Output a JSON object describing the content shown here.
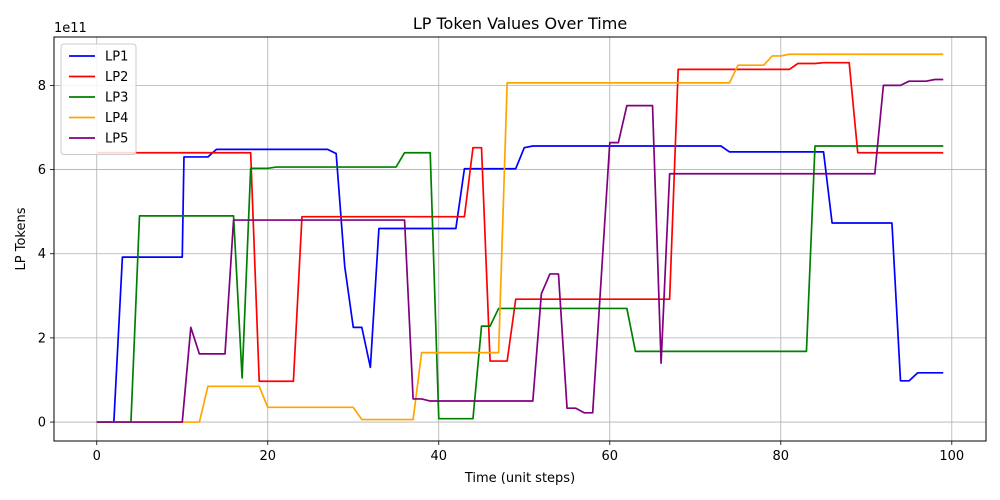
{
  "chart_data": {
    "type": "line",
    "title": "LP Token Values Over Time",
    "xlabel": "Time (unit steps)",
    "ylabel": "LP Tokens",
    "y_offset_label": "1e11",
    "xlim": [
      -5,
      104
    ],
    "ylim": [
      -0.45,
      9.15
    ],
    "y_unit": "1e11",
    "x_ticks": [
      0,
      20,
      40,
      60,
      80,
      100
    ],
    "y_ticks": [
      0,
      2,
      4,
      6,
      8
    ],
    "grid": true,
    "legend_position": "top-left",
    "series": [
      {
        "name": "LP1",
        "color": "#0000ff",
        "points": [
          [
            0,
            0
          ],
          [
            2,
            0
          ],
          [
            3,
            3.92
          ],
          [
            10,
            3.92
          ],
          [
            10.2,
            6.3
          ],
          [
            13,
            6.3
          ],
          [
            14,
            6.48
          ],
          [
            27,
            6.48
          ],
          [
            28,
            6.38
          ],
          [
            29,
            3.7
          ],
          [
            30,
            2.25
          ],
          [
            31,
            2.25
          ],
          [
            32,
            1.3
          ],
          [
            33,
            4.6
          ],
          [
            41,
            4.6
          ],
          [
            42,
            4.6
          ],
          [
            43,
            6.02
          ],
          [
            49,
            6.02
          ],
          [
            50,
            6.52
          ],
          [
            51,
            6.56
          ],
          [
            73,
            6.56
          ],
          [
            74,
            6.42
          ],
          [
            85,
            6.42
          ],
          [
            86,
            4.73
          ],
          [
            93,
            4.73
          ],
          [
            94,
            0.98
          ],
          [
            95,
            0.98
          ],
          [
            96,
            1.17
          ],
          [
            99,
            1.17
          ]
        ]
      },
      {
        "name": "LP2",
        "color": "#ff0000",
        "points": [
          [
            0,
            6.4
          ],
          [
            18,
            6.4
          ],
          [
            19,
            0.97
          ],
          [
            23,
            0.97
          ],
          [
            24,
            4.88
          ],
          [
            43,
            4.88
          ],
          [
            44,
            6.52
          ],
          [
            45,
            6.52
          ],
          [
            46,
            1.45
          ],
          [
            48,
            1.45
          ],
          [
            49,
            2.92
          ],
          [
            67,
            2.92
          ],
          [
            68,
            8.38
          ],
          [
            80,
            8.38
          ],
          [
            81,
            8.38
          ],
          [
            82,
            8.52
          ],
          [
            84,
            8.52
          ],
          [
            85,
            8.54
          ],
          [
            88,
            8.54
          ],
          [
            89,
            6.4
          ],
          [
            99,
            6.4
          ]
        ]
      },
      {
        "name": "LP3",
        "color": "#008000",
        "points": [
          [
            0,
            0
          ],
          [
            4,
            0
          ],
          [
            5,
            4.9
          ],
          [
            16,
            4.9
          ],
          [
            17,
            1.05
          ],
          [
            18,
            6.03
          ],
          [
            20,
            6.03
          ],
          [
            21,
            6.06
          ],
          [
            35,
            6.06
          ],
          [
            36,
            6.4
          ],
          [
            39,
            6.4
          ],
          [
            40,
            0.08
          ],
          [
            44,
            0.08
          ],
          [
            45,
            2.28
          ],
          [
            46,
            2.28
          ],
          [
            47,
            2.7
          ],
          [
            62,
            2.7
          ],
          [
            63,
            1.68
          ],
          [
            83,
            1.68
          ],
          [
            84,
            6.56
          ],
          [
            99,
            6.56
          ]
        ]
      },
      {
        "name": "LP4",
        "color": "#ffa500",
        "points": [
          [
            0,
            0
          ],
          [
            12,
            0
          ],
          [
            13,
            0.85
          ],
          [
            19,
            0.85
          ],
          [
            20,
            0.35
          ],
          [
            30,
            0.35
          ],
          [
            31,
            0.06
          ],
          [
            37,
            0.06
          ],
          [
            38,
            1.65
          ],
          [
            47,
            1.65
          ],
          [
            48,
            8.06
          ],
          [
            74,
            8.06
          ],
          [
            75,
            8.48
          ],
          [
            78,
            8.48
          ],
          [
            79,
            8.7
          ],
          [
            80,
            8.7
          ],
          [
            81,
            8.74
          ],
          [
            99,
            8.74
          ]
        ]
      },
      {
        "name": "LP5",
        "color": "#800080",
        "points": [
          [
            0,
            0
          ],
          [
            10,
            0
          ],
          [
            11,
            2.25
          ],
          [
            12,
            1.62
          ],
          [
            15,
            1.62
          ],
          [
            16,
            4.8
          ],
          [
            36,
            4.8
          ],
          [
            37,
            0.55
          ],
          [
            38,
            0.55
          ],
          [
            39,
            0.5
          ],
          [
            51,
            0.5
          ],
          [
            52,
            3.05
          ],
          [
            53,
            3.52
          ],
          [
            54,
            3.52
          ],
          [
            55,
            0.33
          ],
          [
            56,
            0.33
          ],
          [
            57,
            0.22
          ],
          [
            58,
            0.22
          ],
          [
            60,
            6.64
          ],
          [
            61,
            6.64
          ],
          [
            62,
            7.52
          ],
          [
            65,
            7.52
          ],
          [
            66,
            1.4
          ],
          [
            67,
            5.9
          ],
          [
            91,
            5.9
          ],
          [
            92,
            8.0
          ],
          [
            94,
            8.0
          ],
          [
            95,
            8.1
          ],
          [
            97,
            8.1
          ],
          [
            98,
            8.14
          ],
          [
            99,
            8.14
          ]
        ]
      }
    ]
  }
}
